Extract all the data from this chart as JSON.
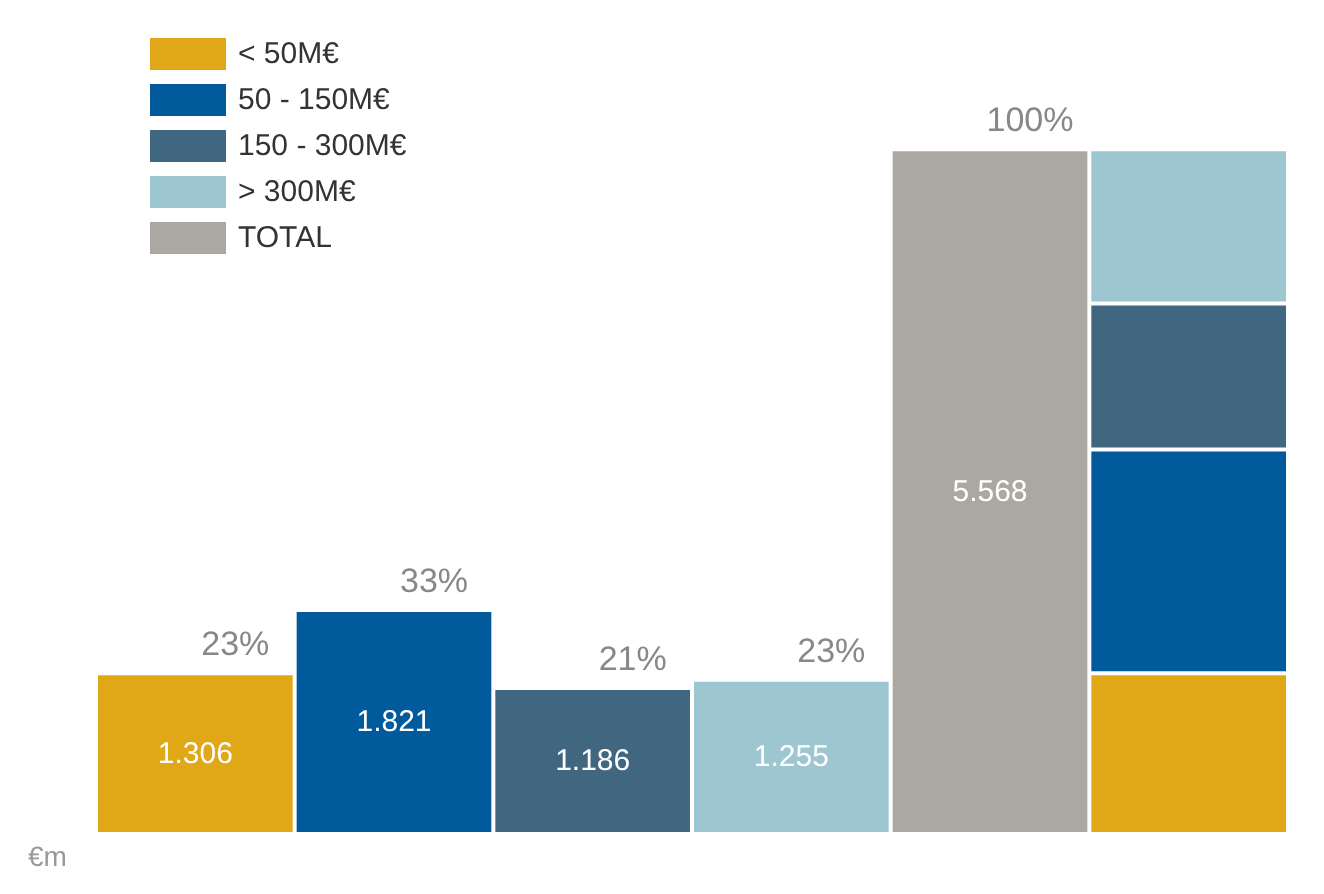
{
  "chart_data": {
    "type": "bar",
    "stacked": true,
    "ylabel": "€m",
    "categories": [
      null,
      null,
      null,
      null,
      null,
      null
    ],
    "series": [
      {
        "name": "< 50M€",
        "color": "#e0a817",
        "values": [
          1.306,
          null,
          null,
          null,
          null,
          1.306
        ],
        "value_labels": [
          "1.306",
          null,
          null,
          null,
          null,
          null
        ]
      },
      {
        "name": "50 - 150M€",
        "color": "#005a9c",
        "values": [
          null,
          1.821,
          null,
          null,
          null,
          1.821
        ],
        "value_labels": [
          null,
          "1.821",
          null,
          null,
          null,
          null
        ]
      },
      {
        "name": "150 - 300M€",
        "color": "#41667f",
        "values": [
          null,
          null,
          1.186,
          null,
          null,
          1.186
        ],
        "value_labels": [
          null,
          null,
          "1.186",
          null,
          null,
          null
        ]
      },
      {
        "name": "> 300M€",
        "color": "#9dc6d0",
        "values": [
          null,
          null,
          null,
          1.255,
          null,
          1.255
        ],
        "value_labels": [
          null,
          null,
          null,
          "1.255",
          null,
          null
        ]
      },
      {
        "name": "TOTAL",
        "color": "#aaa8a0",
        "values": [
          null,
          null,
          null,
          null,
          5.568,
          null
        ],
        "value_labels": [
          null,
          null,
          null,
          null,
          "5.568",
          null
        ]
      }
    ],
    "annotations": [
      {
        "text": "23%",
        "y": 1.306
      },
      {
        "text": "33%",
        "y": 1.821
      },
      {
        "text": "21%",
        "y": 1.186
      },
      {
        "text": "23%",
        "y": 1.255
      },
      {
        "text": "100%",
        "y": 5.568
      }
    ],
    "legend": "top left"
  }
}
